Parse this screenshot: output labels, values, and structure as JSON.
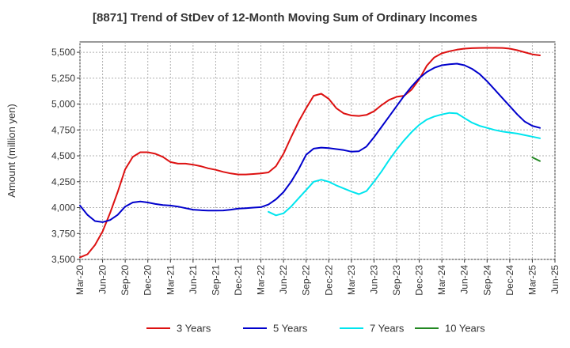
{
  "chart_data": {
    "type": "line",
    "title": "[8871]  Trend of StDev of 12-Month Moving Sum of Ordinary Incomes",
    "ylabel": "Amount (million yen)",
    "xlabel": "",
    "ylim": [
      3500,
      5600
    ],
    "yticks": [
      3500,
      3750,
      4000,
      4250,
      4500,
      4750,
      5000,
      5250,
      5500
    ],
    "ytick_labels": [
      "3,500",
      "3,750",
      "4,000",
      "4,250",
      "4,500",
      "4,750",
      "5,000",
      "5,250",
      "5,500"
    ],
    "xticks": [
      "Mar-20",
      "Jun-20",
      "Sep-20",
      "Dec-20",
      "Mar-21",
      "Jun-21",
      "Sep-21",
      "Dec-21",
      "Mar-22",
      "Jun-22",
      "Sep-22",
      "Dec-22",
      "Mar-23",
      "Jun-23",
      "Sep-23",
      "Dec-23",
      "Mar-24",
      "Jun-24",
      "Sep-24",
      "Dec-24",
      "Mar-25",
      "Jun-25"
    ],
    "x_range_months": [
      "2020-03",
      "2025-06"
    ],
    "grid": true,
    "legend_position": "bottom",
    "series": [
      {
        "name": "3 Years",
        "color": "#dd1111",
        "start": "2020-03",
        "values": [
          3520,
          3550,
          3640,
          3770,
          3950,
          4150,
          4370,
          4490,
          4535,
          4535,
          4520,
          4490,
          4440,
          4425,
          4425,
          4415,
          4400,
          4380,
          4365,
          4345,
          4330,
          4320,
          4320,
          4325,
          4330,
          4340,
          4400,
          4520,
          4680,
          4830,
          4960,
          5080,
          5100,
          5050,
          4960,
          4910,
          4890,
          4885,
          4895,
          4930,
          4990,
          5040,
          5070,
          5080,
          5140,
          5240,
          5370,
          5450,
          5490,
          5510,
          5525,
          5535,
          5540,
          5542,
          5543,
          5543,
          5542,
          5535,
          5520,
          5500,
          5480,
          5470
        ]
      },
      {
        "name": "5 Years",
        "color": "#0000cc",
        "start": "2020-03",
        "values": [
          4020,
          3930,
          3870,
          3860,
          3880,
          3930,
          4010,
          4050,
          4060,
          4050,
          4035,
          4025,
          4020,
          4010,
          3995,
          3980,
          3975,
          3972,
          3972,
          3973,
          3980,
          3990,
          3995,
          4000,
          4005,
          4030,
          4080,
          4150,
          4250,
          4370,
          4510,
          4570,
          4580,
          4575,
          4565,
          4555,
          4540,
          4545,
          4590,
          4680,
          4780,
          4880,
          4980,
          5080,
          5170,
          5250,
          5310,
          5350,
          5375,
          5385,
          5390,
          5375,
          5340,
          5290,
          5220,
          5140,
          5060,
          4980,
          4900,
          4830,
          4790,
          4770
        ]
      },
      {
        "name": "7 Years",
        "color": "#00e5ee",
        "start": "2020-03",
        "values": [
          null,
          null,
          null,
          null,
          null,
          null,
          null,
          null,
          null,
          null,
          null,
          null,
          null,
          null,
          null,
          null,
          null,
          null,
          null,
          null,
          null,
          null,
          null,
          null,
          null,
          3960,
          3925,
          3945,
          4010,
          4090,
          4170,
          4250,
          4270,
          4250,
          4215,
          4185,
          4155,
          4130,
          4160,
          4250,
          4350,
          4460,
          4560,
          4650,
          4730,
          4800,
          4850,
          4880,
          4900,
          4915,
          4910,
          4865,
          4820,
          4790,
          4770,
          4750,
          4735,
          4725,
          4715,
          4700,
          4685,
          4670
        ]
      },
      {
        "name": "10 Years",
        "color": "#228822",
        "start": "2020-03",
        "values": [
          null,
          null,
          null,
          null,
          null,
          null,
          null,
          null,
          null,
          null,
          null,
          null,
          null,
          null,
          null,
          null,
          null,
          null,
          null,
          null,
          null,
          null,
          null,
          null,
          null,
          null,
          null,
          null,
          null,
          null,
          null,
          null,
          null,
          null,
          null,
          null,
          null,
          null,
          null,
          null,
          null,
          null,
          null,
          null,
          null,
          null,
          null,
          null,
          null,
          null,
          null,
          null,
          null,
          null,
          null,
          null,
          null,
          null,
          null,
          null,
          4485,
          4450
        ]
      }
    ]
  }
}
